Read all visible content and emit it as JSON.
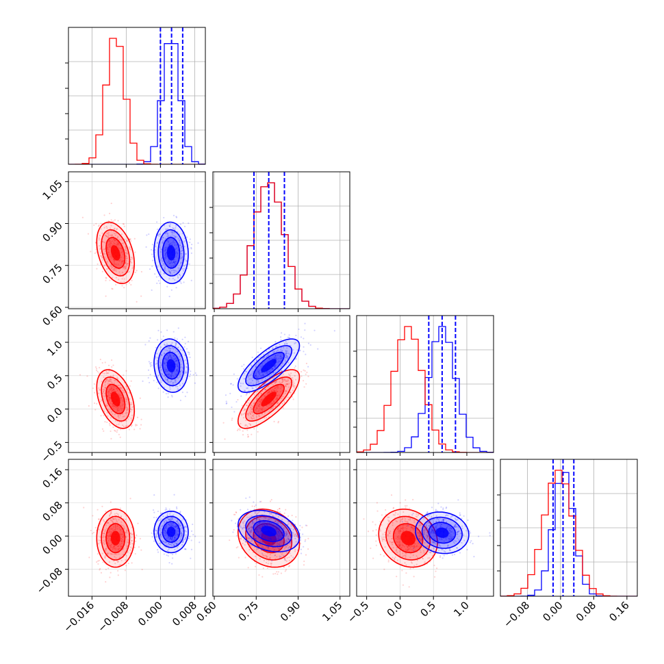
{
  "chart_data": {
    "type": "corner",
    "colors": {
      "series_a": "#ff0000",
      "series_b": "#0000ff"
    },
    "grid": true,
    "legend": "none",
    "title": "",
    "parameters": [
      {
        "ticks": [
          -0.016,
          -0.008,
          0.0,
          0.008
        ],
        "tick_labels": [
          "−0.016",
          "−0.008",
          "0.000",
          "0.008"
        ],
        "lim": [
          -0.0215,
          0.0105
        ],
        "hist_a": {
          "mean": -0.0105,
          "sd": 0.0022
        },
        "hist_b": {
          "mean": 0.0025,
          "sd": 0.002
        },
        "quantiles_b": [
          0.0,
          0.0026,
          0.0052
        ]
      },
      {
        "ticks": [
          0.6,
          0.75,
          0.9,
          1.05
        ],
        "tick_labels": [
          "0.60",
          "0.75",
          "0.90",
          "1.05"
        ],
        "lim": [
          0.595,
          1.085
        ],
        "hist_a": {
          "mean": 0.795,
          "sd": 0.055
        },
        "hist_b": {
          "mean": 0.795,
          "sd": 0.055
        },
        "quantiles_b": [
          0.742,
          0.795,
          0.851
        ]
      },
      {
        "ticks": [
          -0.5,
          0.0,
          0.5,
          1.0
        ],
        "tick_labels": [
          "−0.5",
          "0.0",
          "0.5",
          "1.0"
        ],
        "lim": [
          -0.65,
          1.4
        ],
        "hist_a": {
          "mean": 0.12,
          "sd": 0.22
        },
        "hist_b": {
          "mean": 0.63,
          "sd": 0.2
        },
        "quantiles_b": [
          0.43,
          0.63,
          0.83
        ]
      },
      {
        "ticks": [
          -0.08,
          0.0,
          0.08,
          0.16
        ],
        "tick_labels": [
          "−0.08",
          "0.00",
          "0.08",
          "0.16"
        ],
        "lim": [
          -0.145,
          0.185
        ],
        "hist_a": {
          "mean": -0.005,
          "sd": 0.035
        },
        "hist_b": {
          "mean": 0.007,
          "sd": 0.025
        },
        "quantiles_b": [
          -0.018,
          0.006,
          0.032
        ]
      }
    ],
    "pairs": [
      {
        "x": 0,
        "y": 1,
        "a": {
          "mx": -0.0105,
          "my": 0.795,
          "sx": 0.0022,
          "sy": 0.055,
          "rho": -0.35
        },
        "b": {
          "mx": 0.0025,
          "my": 0.795,
          "sx": 0.002,
          "sy": 0.055,
          "rho": -0.05
        }
      },
      {
        "x": 0,
        "y": 2,
        "a": {
          "mx": -0.0105,
          "my": 0.15,
          "sx": 0.0022,
          "sy": 0.22,
          "rho": -0.4
        },
        "b": {
          "mx": 0.0025,
          "my": 0.65,
          "sx": 0.002,
          "sy": 0.2,
          "rho": -0.1
        }
      },
      {
        "x": 0,
        "y": 3,
        "a": {
          "mx": -0.0105,
          "my": -0.005,
          "sx": 0.0022,
          "sy": 0.035,
          "rho": 0.0
        },
        "b": {
          "mx": 0.0025,
          "my": 0.01,
          "sx": 0.002,
          "sy": 0.025,
          "rho": 0.0
        }
      },
      {
        "x": 1,
        "y": 2,
        "a": {
          "mx": 0.795,
          "my": 0.15,
          "sx": 0.055,
          "sy": 0.22,
          "rho": 0.75
        },
        "b": {
          "mx": 0.795,
          "my": 0.65,
          "sx": 0.055,
          "sy": 0.2,
          "rho": 0.75
        }
      },
      {
        "x": 1,
        "y": 3,
        "a": {
          "mx": 0.795,
          "my": -0.005,
          "sx": 0.055,
          "sy": 0.035,
          "rho": -0.2
        },
        "b": {
          "mx": 0.795,
          "my": 0.012,
          "sx": 0.055,
          "sy": 0.025,
          "rho": -0.3
        }
      },
      {
        "x": 2,
        "y": 3,
        "a": {
          "mx": 0.12,
          "my": -0.005,
          "sx": 0.22,
          "sy": 0.035,
          "rho": -0.15
        },
        "b": {
          "mx": 0.63,
          "my": 0.008,
          "sx": 0.2,
          "sy": 0.025,
          "rho": -0.1
        }
      }
    ]
  }
}
